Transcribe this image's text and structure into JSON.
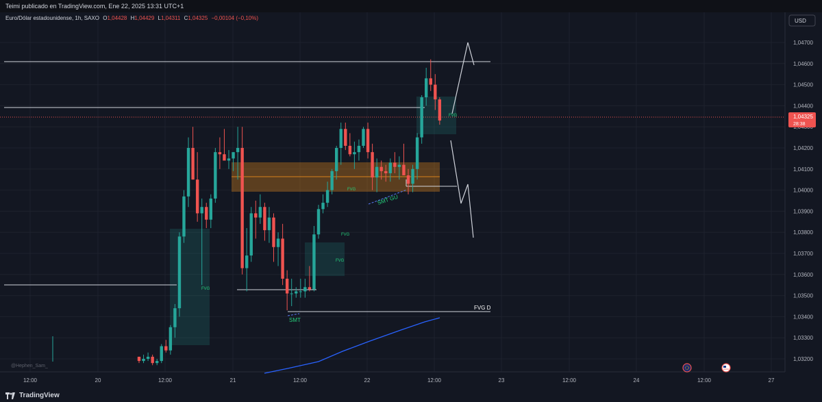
{
  "header": {
    "publish_line": "Teimi publicado en TradingView.com, Ene 22, 2025 13:31 UTC+1"
  },
  "legend": {
    "symbol": "Euro/Dólar estadounidense, 1h, SAXO",
    "o_label": "O",
    "o_value": "1,04428",
    "h_label": "H",
    "h_value": "1,04429",
    "l_label": "L",
    "l_value": "1,04311",
    "c_label": "C",
    "c_value": "1,04325",
    "change": "−0,00104 (−0,10%)"
  },
  "currency_button": "USD",
  "price_tag": {
    "price": "1,04325",
    "countdown": "28:38"
  },
  "watermark": "@Hephen_Sam_",
  "footer": {
    "brand": "TradingView"
  },
  "colors": {
    "up": "#26a69a",
    "down": "#ef5350",
    "background": "#131722",
    "grid": "#1e222d",
    "text": "#d1d4dc",
    "ma": "#2962ff",
    "zone": "#f7931a"
  },
  "chart_data": {
    "type": "candlestick",
    "y_ticks": [
      "1,04700",
      "1,04600",
      "1,04500",
      "1,04400",
      "1,04300",
      "1,04200",
      "1,04100",
      "1,04000",
      "1,03900",
      "1,03800",
      "1,03700",
      "1,03600",
      "1,03500",
      "1,03400",
      "1,03300",
      "1,03200"
    ],
    "x_ticks": [
      "12:00",
      "20",
      "12:00",
      "21",
      "12:00",
      "22",
      "12:00",
      "23",
      "12:00",
      "24",
      "12:00",
      "27"
    ],
    "annotations": [
      "FVG",
      "FVG",
      "FVG",
      "FVG",
      "FVG",
      "SMT GU",
      "SMT",
      "FVG D"
    ],
    "candles": [
      [
        1.0321,
        1.0321,
        1.0318,
        1.0319
      ],
      [
        1.0319,
        1.0322,
        1.0318,
        1.032
      ],
      [
        1.032,
        1.0323,
        1.0319,
        1.0321
      ],
      [
        1.0321,
        1.0322,
        1.0317,
        1.0318
      ],
      [
        1.0318,
        1.032,
        1.0317,
        1.0319
      ],
      [
        1.0319,
        1.0327,
        1.0318,
        1.0326
      ],
      [
        1.0326,
        1.0329,
        1.0323,
        1.0324
      ],
      [
        1.0324,
        1.0336,
        1.0322,
        1.0335
      ],
      [
        1.0335,
        1.0346,
        1.033,
        1.0344
      ],
      [
        1.0344,
        1.038,
        1.034,
        1.0378
      ],
      [
        1.0378,
        1.04,
        1.0375,
        1.0397
      ],
      [
        1.0397,
        1.0425,
        1.0392,
        1.042
      ],
      [
        1.042,
        1.043,
        1.0405,
        1.0405
      ],
      [
        1.0405,
        1.0418,
        1.0385,
        1.0389
      ],
      [
        1.0389,
        1.0396,
        1.0355,
        1.0392
      ],
      [
        1.0392,
        1.0394,
        1.0382,
        1.0386
      ],
      [
        1.0386,
        1.0398,
        1.0382,
        1.0396
      ],
      [
        1.0396,
        1.042,
        1.0394,
        1.0418
      ],
      [
        1.0418,
        1.0425,
        1.041,
        1.0417
      ],
      [
        1.0417,
        1.0429,
        1.0415,
        1.0414
      ],
      [
        1.0414,
        1.0419,
        1.041,
        1.0415
      ],
      [
        1.0415,
        1.0418,
        1.0409,
        1.0418
      ],
      [
        1.0418,
        1.043,
        1.0405,
        1.042
      ],
      [
        1.042,
        1.043,
        1.036,
        1.0363
      ],
      [
        1.0363,
        1.0382,
        1.0352,
        1.0369
      ],
      [
        1.0369,
        1.0392,
        1.0366,
        1.0389
      ],
      [
        1.0389,
        1.0395,
        1.0377,
        1.0387
      ],
      [
        1.0387,
        1.0398,
        1.0384,
        1.0392
      ],
      [
        1.0392,
        1.0394,
        1.0376,
        1.0381
      ],
      [
        1.0381,
        1.0392,
        1.0375,
        1.0387
      ],
      [
        1.0387,
        1.0389,
        1.0366,
        1.0373
      ],
      [
        1.0373,
        1.038,
        1.0364,
        1.0377
      ],
      [
        1.0377,
        1.0384,
        1.0355,
        1.0358
      ],
      [
        1.0358,
        1.0362,
        1.0343,
        1.0351
      ],
      [
        1.0351,
        1.0358,
        1.0345,
        1.0351
      ],
      [
        1.0351,
        1.0354,
        1.0349,
        1.0352
      ],
      [
        1.0352,
        1.0358,
        1.0349,
        1.0352
      ],
      [
        1.0352,
        1.0358,
        1.0349,
        1.0354
      ],
      [
        1.0354,
        1.0364,
        1.0352,
        1.0353
      ],
      [
        1.0353,
        1.0383,
        1.0352,
        1.0379
      ],
      [
        1.0379,
        1.0393,
        1.0377,
        1.0391
      ],
      [
        1.0391,
        1.0398,
        1.0389,
        1.0394
      ],
      [
        1.0394,
        1.0404,
        1.0392,
        1.04
      ],
      [
        1.04,
        1.041,
        1.0398,
        1.0409
      ],
      [
        1.0409,
        1.0421,
        1.0405,
        1.042
      ],
      [
        1.042,
        1.0432,
        1.0412,
        1.0429
      ],
      [
        1.0429,
        1.0432,
        1.0419,
        1.0421
      ],
      [
        1.0421,
        1.0427,
        1.0416,
        1.0417
      ],
      [
        1.0417,
        1.0423,
        1.041,
        1.0418
      ],
      [
        1.0418,
        1.0424,
        1.0414,
        1.0421
      ],
      [
        1.0421,
        1.043,
        1.042,
        1.0429
      ],
      [
        1.0429,
        1.0432,
        1.0415,
        1.0418
      ],
      [
        1.0418,
        1.0422,
        1.04,
        1.0406
      ],
      [
        1.0406,
        1.0415,
        1.0399,
        1.0411
      ],
      [
        1.0411,
        1.0414,
        1.0405,
        1.0409
      ],
      [
        1.0409,
        1.0412,
        1.0404,
        1.0408
      ],
      [
        1.0408,
        1.0415,
        1.0404,
        1.0413
      ],
      [
        1.0413,
        1.0418,
        1.0408,
        1.0411
      ],
      [
        1.0411,
        1.0416,
        1.0405,
        1.0412
      ],
      [
        1.0412,
        1.0422,
        1.0408,
        1.0407
      ],
      [
        1.0407,
        1.041,
        1.0398,
        1.0403
      ],
      [
        1.0403,
        1.0412,
        1.0399,
        1.041
      ],
      [
        1.041,
        1.0427,
        1.0405,
        1.0425
      ],
      [
        1.0425,
        1.0445,
        1.0422,
        1.0444
      ],
      [
        1.0444,
        1.0458,
        1.044,
        1.0453
      ],
      [
        1.0453,
        1.0462,
        1.0447,
        1.045
      ],
      [
        1.045,
        1.0455,
        1.0438,
        1.0443
      ],
      [
        1.0443,
        1.0444,
        1.0431,
        1.0433
      ]
    ]
  }
}
